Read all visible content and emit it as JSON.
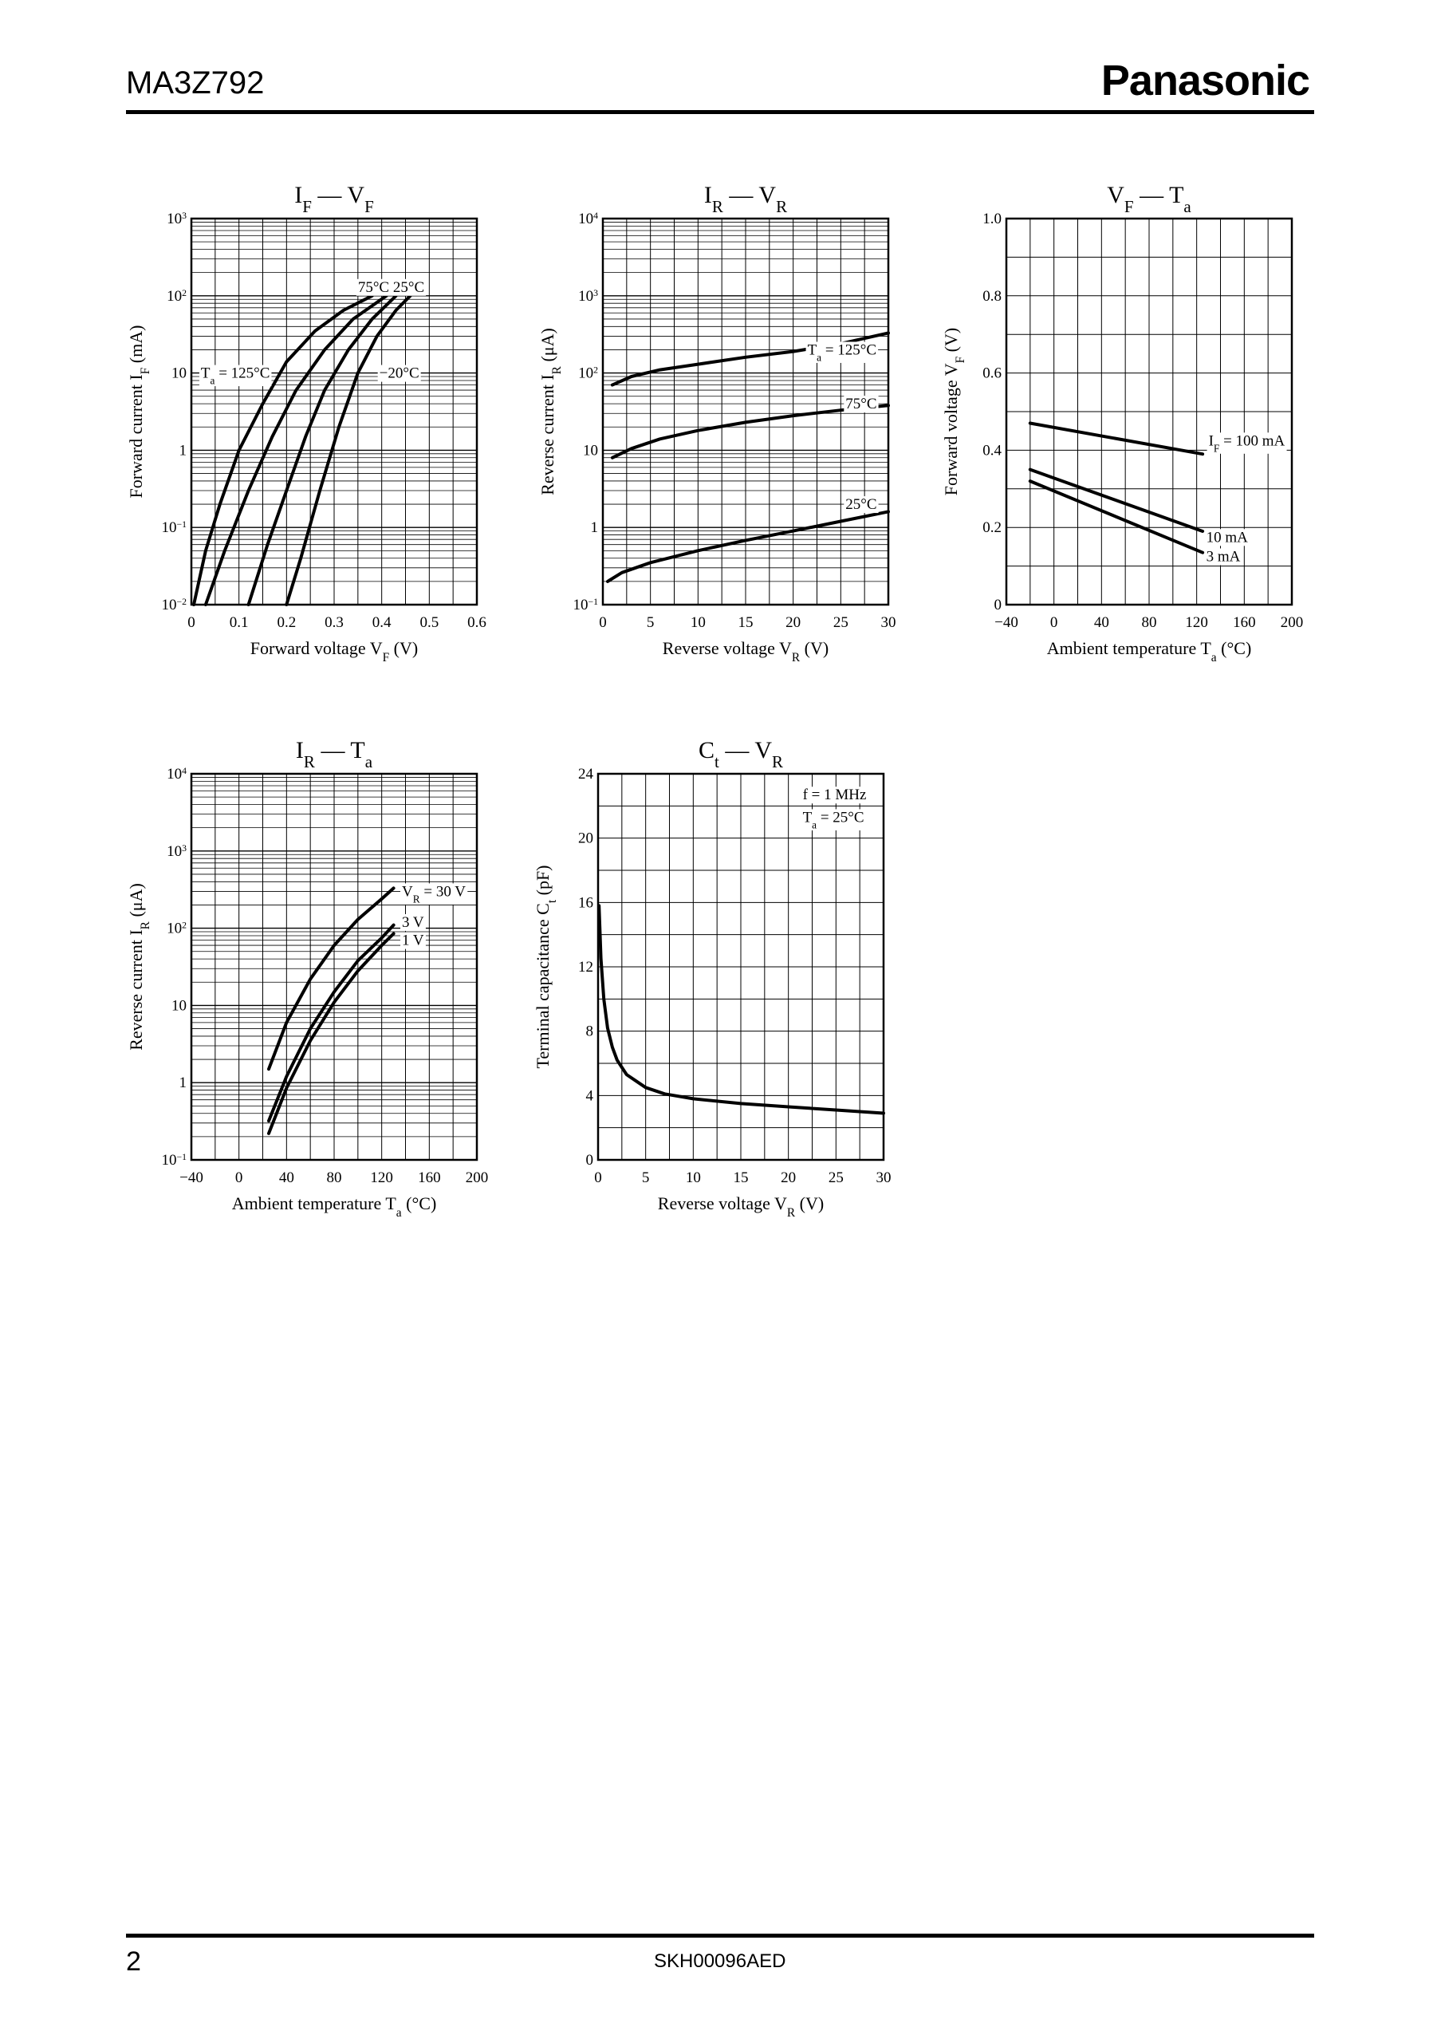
{
  "header": {
    "part_number": "MA3Z792",
    "brand": "Panasonic"
  },
  "footer": {
    "page_number": "2",
    "doc_code": "SKH00096AED"
  },
  "chart_data": [
    {
      "id": "if_vf",
      "type": "line",
      "title": {
        "main1": "I",
        "sub1": "F",
        "main2": "V",
        "sub2": "F"
      },
      "xlabel": {
        "text": "Forward voltage",
        "sym": "V",
        "sub": "F",
        "unit": "(V)"
      },
      "ylabel": {
        "text": "Forward current",
        "sym": "I",
        "sub": "F",
        "unit": "(mA)"
      },
      "xscale": "linear",
      "yscale": "log",
      "xlim": [
        0,
        0.6
      ],
      "ylim": [
        0.01,
        1000
      ],
      "xticks": [
        0,
        0.1,
        0.2,
        0.3,
        0.4,
        0.5,
        0.6
      ],
      "xtick_labels": [
        "0",
        "0.1",
        "0.2",
        "0.3",
        "0.4",
        "0.5",
        "0.6"
      ],
      "yticks": [
        {
          "value": 0.01,
          "base": "10",
          "exp": "−2"
        },
        {
          "value": 0.1,
          "base": "10",
          "exp": "−1"
        },
        {
          "value": 1,
          "base": "1",
          "exp": ""
        },
        {
          "value": 10,
          "base": "10",
          "exp": ""
        },
        {
          "value": 100,
          "base": "10",
          "exp": "2"
        },
        {
          "value": 1000,
          "base": "10",
          "exp": "3"
        }
      ],
      "grid": "log-minor",
      "annotations": [
        {
          "text": "75°C 25°C",
          "x": 0.35,
          "y": 130
        },
        {
          "text": "−20°C",
          "x": 0.395,
          "y": 10
        },
        {
          "text": "T",
          "sub": "a",
          "after": " = 125°C",
          "x": 0.02,
          "y": 10
        }
      ],
      "series": [
        {
          "x": [
            0.005,
            0.03,
            0.06,
            0.1,
            0.15,
            0.2,
            0.26,
            0.32,
            0.38
          ],
          "y": [
            0.01,
            0.05,
            0.2,
            1,
            4,
            14,
            35,
            65,
            100
          ]
        },
        {
          "x": [
            0.03,
            0.07,
            0.12,
            0.17,
            0.22,
            0.28,
            0.34,
            0.41
          ],
          "y": [
            0.01,
            0.05,
            0.3,
            1.5,
            6,
            20,
            50,
            100
          ]
        },
        {
          "x": [
            0.12,
            0.16,
            0.2,
            0.24,
            0.28,
            0.33,
            0.38,
            0.43
          ],
          "y": [
            0.01,
            0.06,
            0.3,
            1.5,
            6,
            20,
            50,
            100
          ]
        },
        {
          "x": [
            0.2,
            0.23,
            0.27,
            0.31,
            0.35,
            0.39,
            0.43,
            0.46
          ],
          "y": [
            0.01,
            0.04,
            0.3,
            2,
            10,
            30,
            65,
            100
          ]
        }
      ]
    },
    {
      "id": "ir_vr",
      "type": "line",
      "title": {
        "main1": "I",
        "sub1": "R",
        "main2": "V",
        "sub2": "R"
      },
      "xlabel": {
        "text": "Reverse voltage",
        "sym": "V",
        "sub": "R",
        "unit": "(V)"
      },
      "ylabel": {
        "text": "Reverse current",
        "sym": "I",
        "sub": "R",
        "unit": "(μA)"
      },
      "xscale": "linear",
      "yscale": "log",
      "xlim": [
        0,
        30
      ],
      "ylim": [
        0.1,
        10000
      ],
      "xticks": [
        0,
        5,
        10,
        15,
        20,
        25,
        30
      ],
      "xtick_labels": [
        "0",
        "5",
        "10",
        "15",
        "20",
        "25",
        "30"
      ],
      "yticks": [
        {
          "value": 0.1,
          "base": "10",
          "exp": "−1"
        },
        {
          "value": 1,
          "base": "1",
          "exp": ""
        },
        {
          "value": 10,
          "base": "10",
          "exp": ""
        },
        {
          "value": 100,
          "base": "10",
          "exp": "2"
        },
        {
          "value": 1000,
          "base": "10",
          "exp": "3"
        },
        {
          "value": 10000,
          "base": "10",
          "exp": "4"
        }
      ],
      "grid": "log-minor",
      "annotations": [
        {
          "text": "T",
          "sub": "a",
          "after": " = 125°C",
          "x": 21.5,
          "y": 200
        },
        {
          "text": "75°C",
          "x": 25.5,
          "y": 40
        },
        {
          "text": "25°C",
          "x": 25.5,
          "y": 2
        }
      ],
      "series": [
        {
          "x": [
            1,
            3,
            6,
            10,
            15,
            20,
            25,
            30
          ],
          "y": [
            70,
            90,
            110,
            130,
            160,
            190,
            240,
            330
          ]
        },
        {
          "x": [
            1,
            3,
            6,
            10,
            15,
            20,
            25,
            30
          ],
          "y": [
            8,
            10.5,
            14,
            18,
            23,
            28,
            33,
            38
          ]
        },
        {
          "x": [
            0.5,
            2,
            5,
            10,
            15,
            20,
            25,
            30
          ],
          "y": [
            0.2,
            0.26,
            0.35,
            0.5,
            0.68,
            0.9,
            1.2,
            1.6
          ]
        }
      ]
    },
    {
      "id": "vf_ta",
      "type": "line",
      "title": {
        "main1": "V",
        "sub1": "F",
        "main2": "T",
        "sub2": "a"
      },
      "xlabel": {
        "text": "Ambient temperature",
        "sym": "T",
        "sub": "a",
        "unit": "(°C)"
      },
      "ylabel": {
        "text": "Forward voltage",
        "sym": "V",
        "sub": "F",
        "unit": "(V)"
      },
      "xscale": "linear",
      "yscale": "linear",
      "xlim": [
        -40,
        200
      ],
      "ylim": [
        0,
        1.0
      ],
      "xticks": [
        -40,
        0,
        40,
        80,
        120,
        160,
        200
      ],
      "xtick_labels": [
        "−40",
        "0",
        "40",
        "80",
        "120",
        "160",
        "200"
      ],
      "yticks": [
        {
          "value": 0,
          "base": "0",
          "exp": ""
        },
        {
          "value": 0.2,
          "base": "0.2",
          "exp": ""
        },
        {
          "value": 0.4,
          "base": "0.4",
          "exp": ""
        },
        {
          "value": 0.6,
          "base": "0.6",
          "exp": ""
        },
        {
          "value": 0.8,
          "base": "0.8",
          "exp": ""
        },
        {
          "value": 1.0,
          "base": "1.0",
          "exp": ""
        }
      ],
      "grid": "linear-20",
      "annotations": [
        {
          "text": "I",
          "sub": "F",
          "after": " = 100 mA",
          "x": 130,
          "y": 0.425
        },
        {
          "text": "10 mA",
          "x": 128,
          "y": 0.175
        },
        {
          "text": "3 mA",
          "x": 128,
          "y": 0.125
        }
      ],
      "series": [
        {
          "x": [
            -20,
            125
          ],
          "y": [
            0.47,
            0.39
          ]
        },
        {
          "x": [
            -20,
            125
          ],
          "y": [
            0.35,
            0.19
          ]
        },
        {
          "x": [
            -20,
            125
          ],
          "y": [
            0.32,
            0.135
          ]
        }
      ]
    },
    {
      "id": "ir_ta",
      "type": "line",
      "title": {
        "main1": "I",
        "sub1": "R",
        "main2": "T",
        "sub2": "a"
      },
      "xlabel": {
        "text": "Ambient temperature",
        "sym": "T",
        "sub": "a",
        "unit": "(°C)"
      },
      "ylabel": {
        "text": "Reverse current",
        "sym": "I",
        "sub": "R",
        "unit": "(μA)"
      },
      "xscale": "linear",
      "yscale": "log",
      "xlim": [
        -40,
        200
      ],
      "ylim": [
        0.1,
        10000
      ],
      "xticks": [
        -40,
        0,
        40,
        80,
        120,
        160,
        200
      ],
      "xtick_labels": [
        "−40",
        "0",
        "40",
        "80",
        "120",
        "160",
        "200"
      ],
      "yticks": [
        {
          "value": 0.1,
          "base": "10",
          "exp": "−1"
        },
        {
          "value": 1,
          "base": "1",
          "exp": ""
        },
        {
          "value": 10,
          "base": "10",
          "exp": ""
        },
        {
          "value": 100,
          "base": "10",
          "exp": "2"
        },
        {
          "value": 1000,
          "base": "10",
          "exp": "3"
        },
        {
          "value": 10000,
          "base": "10",
          "exp": "4"
        }
      ],
      "grid": "log-minor",
      "annotations": [
        {
          "text": "V",
          "sub": "R",
          "after": " = 30 V",
          "x": 137,
          "y": 300
        },
        {
          "text": "3 V",
          "x": 137,
          "y": 120
        },
        {
          "text": "1 V",
          "x": 137,
          "y": 70
        }
      ],
      "series": [
        {
          "x": [
            25,
            40,
            60,
            80,
            100,
            120,
            130
          ],
          "y": [
            1.5,
            6,
            22,
            60,
            130,
            240,
            330
          ]
        },
        {
          "x": [
            25,
            40,
            60,
            80,
            100,
            120,
            130
          ],
          "y": [
            0.32,
            1.2,
            5,
            15,
            38,
            75,
            110
          ]
        },
        {
          "x": [
            25,
            40,
            60,
            80,
            100,
            120,
            130
          ],
          "y": [
            0.22,
            0.85,
            3.5,
            11,
            28,
            60,
            85
          ]
        }
      ]
    },
    {
      "id": "ct_vr",
      "type": "line",
      "title": {
        "main1": "C",
        "sub1": "t",
        "main2": "V",
        "sub2": "R"
      },
      "xlabel": {
        "text": "Reverse voltage",
        "sym": "V",
        "sub": "R",
        "unit": "(V)"
      },
      "ylabel": {
        "text": "Terminal capacitance",
        "sym": "C",
        "sub": "t",
        "unit": "(pF)"
      },
      "xscale": "linear",
      "yscale": "linear",
      "xlim": [
        0,
        30
      ],
      "ylim": [
        0,
        24
      ],
      "xticks": [
        0,
        5,
        10,
        15,
        20,
        25,
        30
      ],
      "xtick_labels": [
        "0",
        "5",
        "10",
        "15",
        "20",
        "25",
        "30"
      ],
      "yticks": [
        {
          "value": 0,
          "base": "0",
          "exp": ""
        },
        {
          "value": 4,
          "base": "4",
          "exp": ""
        },
        {
          "value": 8,
          "base": "8",
          "exp": ""
        },
        {
          "value": 12,
          "base": "12",
          "exp": ""
        },
        {
          "value": 16,
          "base": "16",
          "exp": ""
        },
        {
          "value": 20,
          "base": "20",
          "exp": ""
        },
        {
          "value": 24,
          "base": "24",
          "exp": ""
        }
      ],
      "grid": "linear-2",
      "annotations": [
        {
          "text": "f = 1 MHz",
          "x": 21.5,
          "y": 22.7
        },
        {
          "text": "T",
          "sub": "a",
          "after": " = 25°C",
          "x": 21.5,
          "y": 21.3
        }
      ],
      "series": [
        {
          "x": [
            0.1,
            0.3,
            0.6,
            1,
            1.5,
            2,
            3,
            4,
            5,
            7,
            10,
            15,
            20,
            25,
            30
          ],
          "y": [
            15.8,
            12.5,
            10,
            8.2,
            7.0,
            6.2,
            5.3,
            4.9,
            4.5,
            4.1,
            3.8,
            3.5,
            3.3,
            3.1,
            2.9
          ]
        }
      ]
    }
  ]
}
